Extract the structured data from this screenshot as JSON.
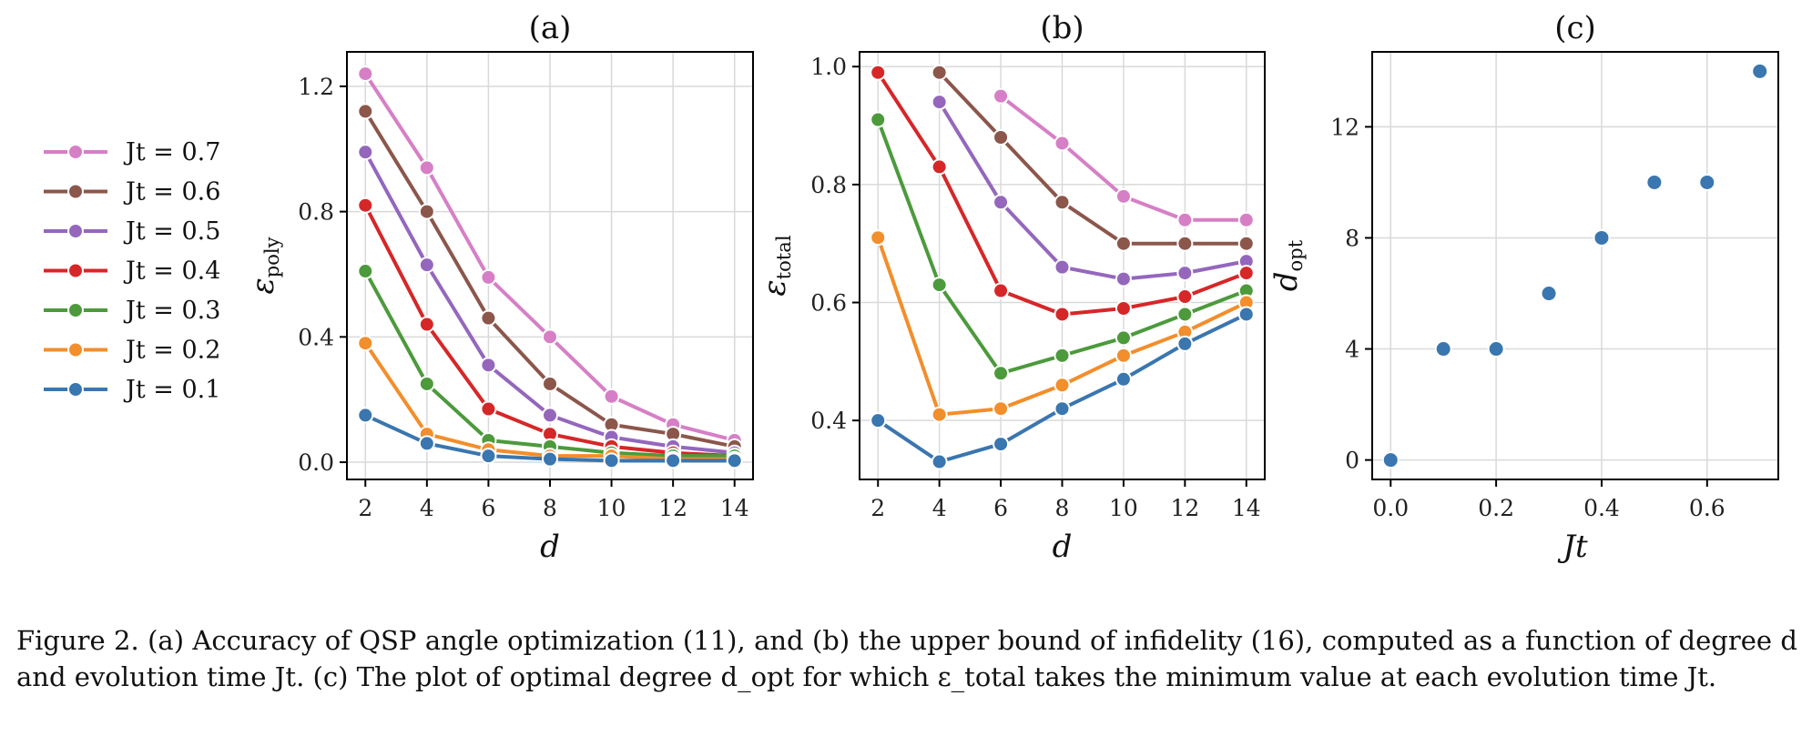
{
  "figure": {
    "caption": "Figure 2. (a) Accuracy of QSP angle optimization (11), and (b) the upper bound of infidelity (16), computed as a function of degree d and evolution time Jt. (c) The plot of optimal degree d_opt for which ε_total takes the minimum value at each evolution time Jt."
  },
  "legend": {
    "entries": [
      "Jt = 0.7",
      "Jt = 0.6",
      "Jt = 0.5",
      "Jt = 0.4",
      "Jt = 0.3",
      "Jt = 0.2",
      "Jt = 0.1"
    ]
  },
  "chart_data": [
    {
      "type": "line",
      "title": "(a)",
      "xlabel": "d",
      "ylabel": "ε_poly",
      "grid": true,
      "x": [
        2,
        4,
        6,
        8,
        10,
        12,
        14
      ],
      "xticks": [
        2,
        4,
        6,
        8,
        10,
        12,
        14
      ],
      "xlim": [
        1.4,
        14.6
      ],
      "yticks": [
        0.0,
        0.4,
        0.8,
        1.2
      ],
      "ytick_labels": [
        "0.0",
        "0.4",
        "0.8",
        "1.2"
      ],
      "ylim": [
        -0.055,
        1.31
      ],
      "series": [
        {
          "name": "Jt = 0.7",
          "color": "#d67fc6",
          "values": [
            1.24,
            0.94,
            0.59,
            0.4,
            0.21,
            0.12,
            0.07
          ]
        },
        {
          "name": "Jt = 0.6",
          "color": "#8c564b",
          "values": [
            1.12,
            0.8,
            0.46,
            0.25,
            0.12,
            0.09,
            0.05
          ]
        },
        {
          "name": "Jt = 0.5",
          "color": "#9467bd",
          "values": [
            0.99,
            0.63,
            0.31,
            0.15,
            0.08,
            0.05,
            0.03
          ]
        },
        {
          "name": "Jt = 0.4",
          "color": "#d62728",
          "values": [
            0.82,
            0.44,
            0.17,
            0.09,
            0.05,
            0.03,
            0.02
          ]
        },
        {
          "name": "Jt = 0.3",
          "color": "#4c9a3c",
          "values": [
            0.61,
            0.25,
            0.07,
            0.05,
            0.03,
            0.02,
            0.02
          ]
        },
        {
          "name": "Jt = 0.2",
          "color": "#f28e2b",
          "values": [
            0.38,
            0.09,
            0.04,
            0.02,
            0.02,
            0.01,
            0.01
          ]
        },
        {
          "name": "Jt = 0.1",
          "color": "#3a76af",
          "values": [
            0.15,
            0.06,
            0.02,
            0.01,
            0.005,
            0.005,
            0.005
          ]
        }
      ]
    },
    {
      "type": "line",
      "title": "(b)",
      "xlabel": "d",
      "ylabel": "ε_total",
      "grid": true,
      "x": [
        2,
        4,
        6,
        8,
        10,
        12,
        14
      ],
      "xticks": [
        2,
        4,
        6,
        8,
        10,
        12,
        14
      ],
      "xlim": [
        1.4,
        14.6
      ],
      "yticks": [
        0.4,
        0.6,
        0.8,
        1.0
      ],
      "ytick_labels": [
        "0.4",
        "0.6",
        "0.8",
        "1.0"
      ],
      "ylim": [
        0.3,
        1.025
      ],
      "series": [
        {
          "name": "Jt = 0.7",
          "color": "#d67fc6",
          "values": [
            null,
            null,
            0.95,
            0.87,
            0.78,
            0.74,
            0.74
          ]
        },
        {
          "name": "Jt = 0.6",
          "color": "#8c564b",
          "values": [
            null,
            0.99,
            0.88,
            0.77,
            0.7,
            0.7,
            0.7
          ]
        },
        {
          "name": "Jt = 0.5",
          "color": "#9467bd",
          "values": [
            null,
            0.94,
            0.77,
            0.66,
            0.64,
            0.65,
            0.67
          ]
        },
        {
          "name": "Jt = 0.4",
          "color": "#d62728",
          "values": [
            0.99,
            0.83,
            0.62,
            0.58,
            0.59,
            0.61,
            0.65
          ]
        },
        {
          "name": "Jt = 0.3",
          "color": "#4c9a3c",
          "values": [
            0.91,
            0.63,
            0.48,
            0.51,
            0.54,
            0.58,
            0.62
          ]
        },
        {
          "name": "Jt = 0.2",
          "color": "#f28e2b",
          "values": [
            0.71,
            0.41,
            0.42,
            0.46,
            0.51,
            0.55,
            0.6
          ]
        },
        {
          "name": "Jt = 0.1",
          "color": "#3a76af",
          "values": [
            0.4,
            0.33,
            0.36,
            0.42,
            0.47,
            0.53,
            0.58
          ]
        }
      ]
    },
    {
      "type": "scatter",
      "title": "(c)",
      "xlabel": "Jt",
      "ylabel": "d_opt",
      "grid": true,
      "xticks": [
        0.0,
        0.2,
        0.4,
        0.6
      ],
      "xtick_labels": [
        "0.0",
        "0.2",
        "0.4",
        "0.6"
      ],
      "xlim": [
        -0.035,
        0.735
      ],
      "yticks": [
        0,
        4,
        8,
        12
      ],
      "ytick_labels": [
        "0",
        "4",
        "8",
        "12"
      ],
      "ylim": [
        -0.7,
        14.7
      ],
      "color": "#3a76af",
      "x": [
        0.0,
        0.1,
        0.2,
        0.3,
        0.4,
        0.5,
        0.6,
        0.7
      ],
      "y": [
        0,
        4,
        4,
        6,
        8,
        10,
        10,
        14
      ]
    }
  ]
}
